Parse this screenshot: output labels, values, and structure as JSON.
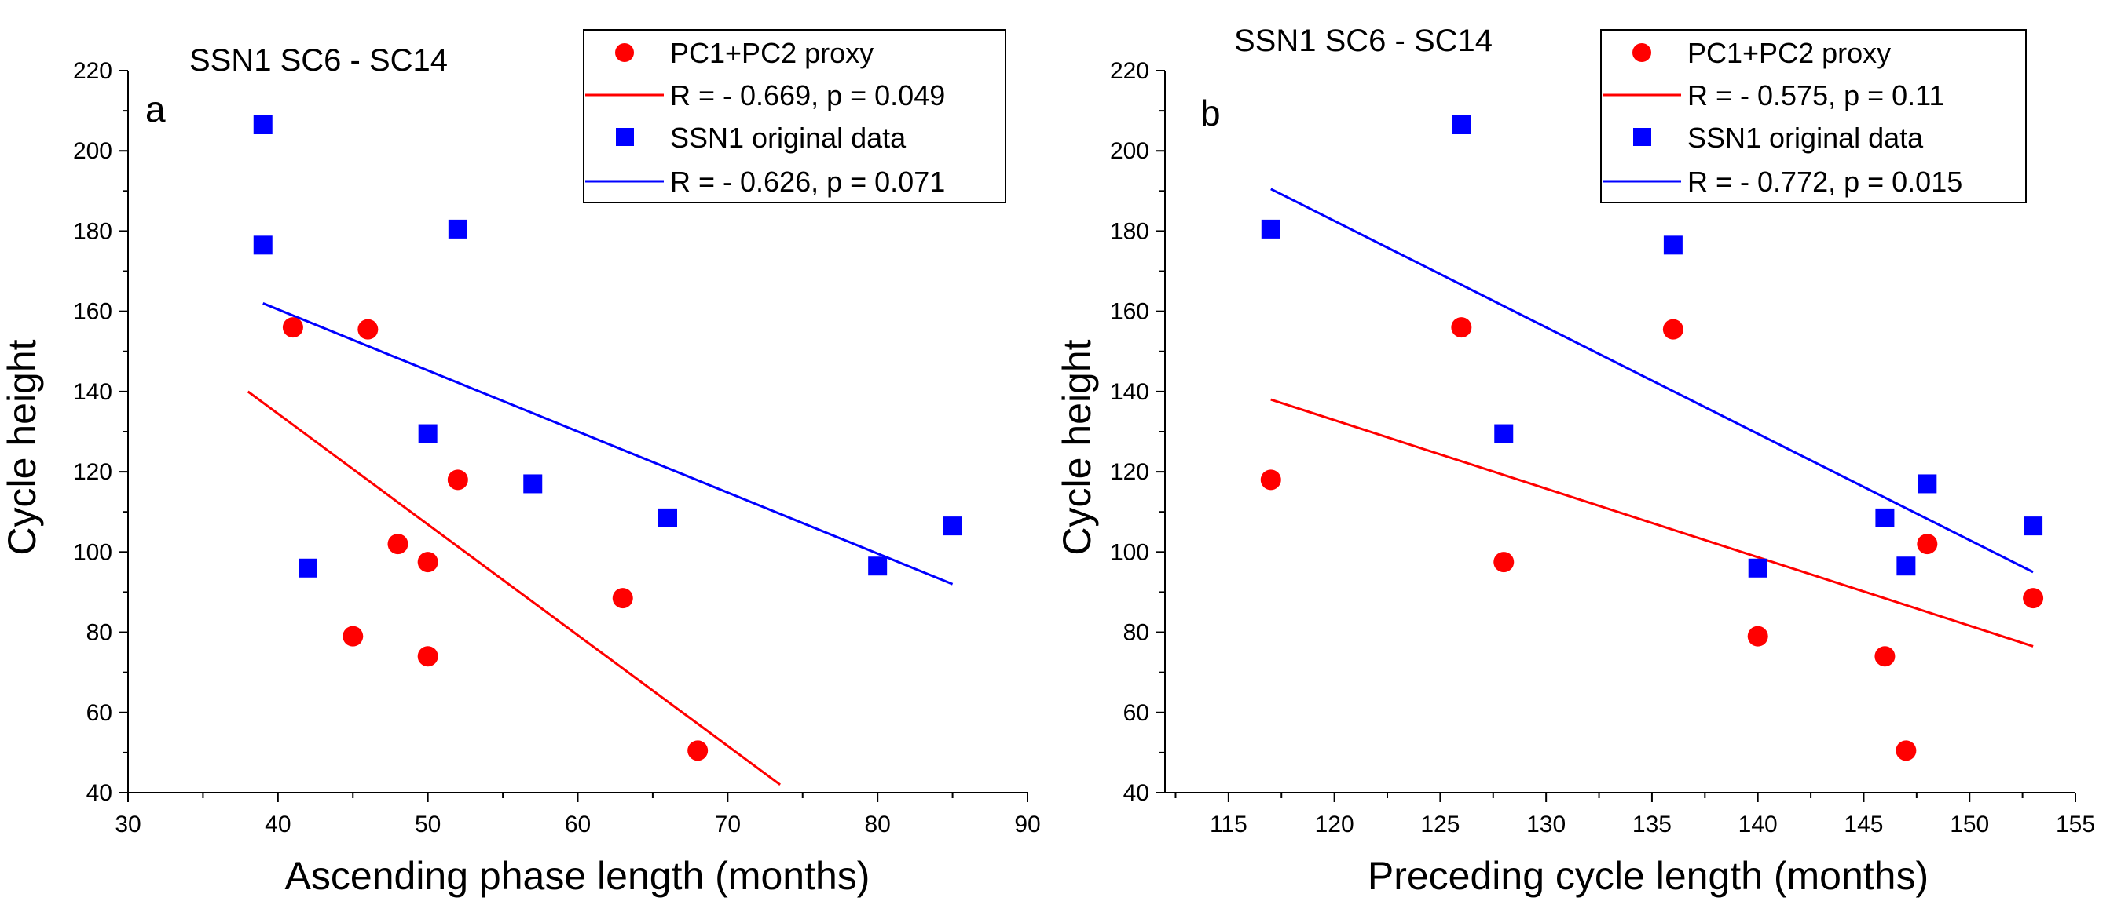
{
  "chart_data": [
    {
      "panel": "a",
      "type": "scatter",
      "title": "SSN1 SC6 - SC14",
      "xlabel": "Ascending phase length (months)",
      "ylabel": "Cycle height",
      "xlim": [
        30,
        90
      ],
      "ylim": [
        40,
        220
      ],
      "xticks": [
        30,
        40,
        50,
        60,
        70,
        80,
        90
      ],
      "yticks": [
        40,
        60,
        80,
        100,
        120,
        140,
        160,
        180,
        200,
        220
      ],
      "legend_position": "top-right",
      "series": [
        {
          "name": "PC1+PC2 proxy",
          "marker": "circle",
          "color": "#ff0000",
          "points": [
            [
              41,
              156
            ],
            [
              46,
              155.5
            ],
            [
              52,
              118
            ],
            [
              48,
              102
            ],
            [
              50,
              97.5
            ],
            [
              45,
              79
            ],
            [
              50,
              74
            ],
            [
              63,
              88.5
            ],
            [
              68,
              50.5
            ]
          ],
          "fit": {
            "label": "R = - 0.669, p = 0.049",
            "x": [
              38,
              73.5
            ],
            "y": [
              140,
              42
            ]
          }
        },
        {
          "name": "SSN1 original data",
          "marker": "square",
          "color": "#0000ff",
          "points": [
            [
              39,
              206.5
            ],
            [
              39,
              176.5
            ],
            [
              52,
              180.5
            ],
            [
              50,
              129.5
            ],
            [
              57,
              117
            ],
            [
              42,
              96
            ],
            [
              66,
              108.5
            ],
            [
              80,
              96.5
            ],
            [
              85,
              106.5
            ]
          ],
          "fit": {
            "label": "R = - 0.626, p = 0.071",
            "x": [
              39,
              85
            ],
            "y": [
              162,
              92
            ]
          }
        }
      ]
    },
    {
      "panel": "b",
      "type": "scatter",
      "title": "SSN1 SC6 - SC14",
      "xlabel": "Preceding cycle length (months)",
      "ylabel": "Cycle height",
      "xlim": [
        112,
        155
      ],
      "ylim": [
        40,
        220
      ],
      "xticks": [
        115,
        120,
        125,
        130,
        135,
        140,
        145,
        150,
        155
      ],
      "yticks": [
        40,
        60,
        80,
        100,
        120,
        140,
        160,
        180,
        200,
        220
      ],
      "legend_position": "top-right",
      "series": [
        {
          "name": "PC1+PC2 proxy",
          "marker": "circle",
          "color": "#ff0000",
          "points": [
            [
              117,
              118
            ],
            [
              126,
              156
            ],
            [
              128,
              97.5
            ],
            [
              136,
              155.5
            ],
            [
              140,
              79
            ],
            [
              146,
              74
            ],
            [
              147,
              50.5
            ],
            [
              148,
              102
            ],
            [
              153,
              88.5
            ]
          ],
          "fit": {
            "label": "R = - 0.575, p = 0.11",
            "x": [
              117,
              153
            ],
            "y": [
              138,
              76.5
            ]
          }
        },
        {
          "name": "SSN1 original data",
          "marker": "square",
          "color": "#0000ff",
          "points": [
            [
              117,
              180.5
            ],
            [
              126,
              206.5
            ],
            [
              128,
              129.5
            ],
            [
              136,
              176.5
            ],
            [
              140,
              96
            ],
            [
              146,
              108.5
            ],
            [
              147,
              96.5
            ],
            [
              148,
              117
            ],
            [
              153,
              106.5
            ]
          ],
          "fit": {
            "label": "R = - 0.772, p = 0.015",
            "x": [
              117,
              153
            ],
            "y": [
              190.5,
              95
            ]
          }
        }
      ]
    }
  ]
}
